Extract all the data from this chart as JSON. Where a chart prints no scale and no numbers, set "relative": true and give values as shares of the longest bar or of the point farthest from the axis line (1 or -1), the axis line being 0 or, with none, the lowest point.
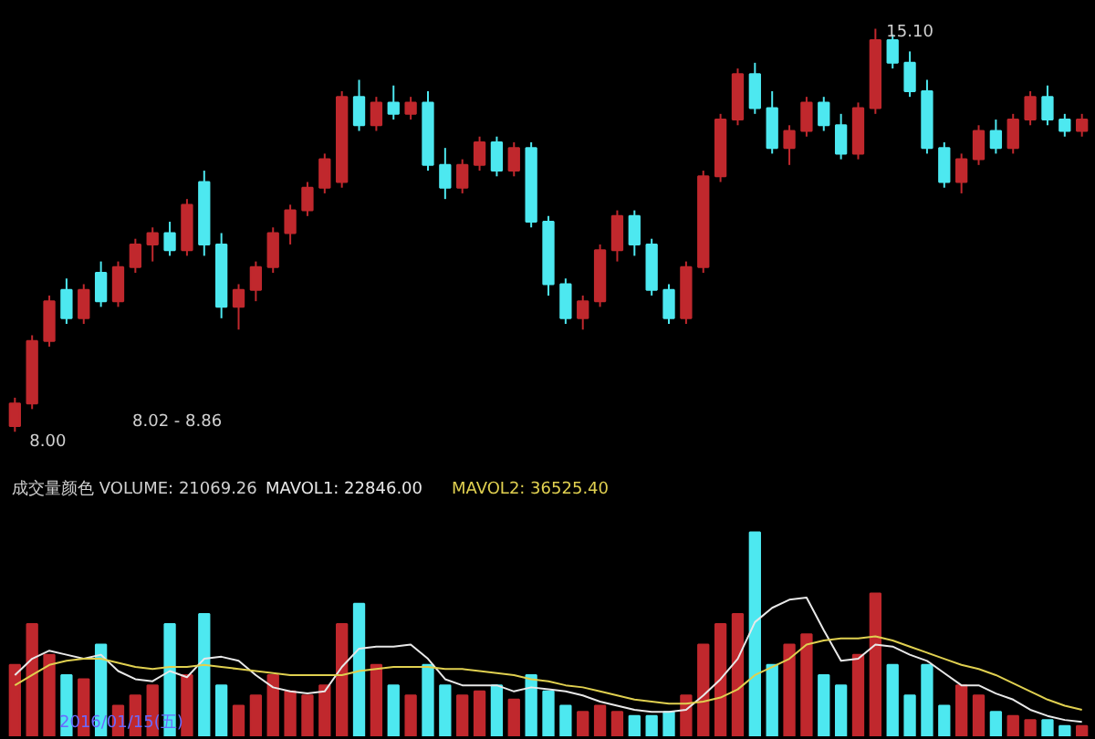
{
  "chart_data": [
    {
      "type": "candlestick",
      "tick_labels": false,
      "grid": false,
      "categories": [
        null,
        null,
        null,
        null,
        null,
        null,
        null,
        null,
        null,
        null,
        null,
        null,
        null,
        null,
        null,
        null,
        null,
        null,
        null,
        null,
        null,
        null,
        null,
        null,
        null,
        null,
        null,
        null,
        null,
        null,
        null,
        null,
        null,
        null,
        null,
        null,
        null,
        null,
        null,
        null,
        null,
        null,
        null,
        null,
        null,
        null,
        null,
        null,
        null,
        null,
        null,
        null,
        null,
        null,
        null,
        null,
        null,
        null,
        null,
        null,
        null,
        null,
        null
      ],
      "ohlc": [
        [
          8.1,
          8.6,
          8.0,
          8.5
        ],
        [
          8.5,
          9.7,
          8.4,
          9.6
        ],
        [
          9.6,
          10.4,
          9.5,
          10.3
        ],
        [
          10.5,
          10.7,
          9.9,
          10.0
        ],
        [
          10.0,
          10.6,
          9.9,
          10.5
        ],
        [
          10.8,
          11.0,
          10.2,
          10.3
        ],
        [
          10.3,
          11.0,
          10.2,
          10.9
        ],
        [
          10.9,
          11.4,
          10.8,
          11.3
        ],
        [
          11.3,
          11.6,
          11.0,
          11.5
        ],
        [
          11.5,
          11.7,
          11.1,
          11.2
        ],
        [
          11.2,
          12.1,
          11.1,
          12.0
        ],
        [
          12.4,
          12.6,
          11.1,
          11.3
        ],
        [
          11.3,
          11.5,
          10.0,
          10.2
        ],
        [
          10.2,
          10.6,
          9.8,
          10.5
        ],
        [
          10.5,
          11.0,
          10.3,
          10.9
        ],
        [
          10.9,
          11.6,
          10.8,
          11.5
        ],
        [
          11.5,
          12.0,
          11.3,
          11.9
        ],
        [
          11.9,
          12.4,
          11.8,
          12.3
        ],
        [
          12.3,
          12.9,
          12.2,
          12.8
        ],
        [
          12.4,
          14.0,
          12.3,
          13.9
        ],
        [
          13.9,
          14.2,
          13.3,
          13.4
        ],
        [
          13.4,
          13.9,
          13.3,
          13.8
        ],
        [
          13.8,
          14.1,
          13.5,
          13.6
        ],
        [
          13.6,
          13.9,
          13.5,
          13.8
        ],
        [
          13.8,
          14.0,
          12.6,
          12.7
        ],
        [
          12.7,
          13.0,
          12.1,
          12.3
        ],
        [
          12.3,
          12.8,
          12.2,
          12.7
        ],
        [
          12.7,
          13.2,
          12.6,
          13.1
        ],
        [
          13.1,
          13.2,
          12.5,
          12.6
        ],
        [
          12.6,
          13.1,
          12.5,
          13.0
        ],
        [
          13.0,
          13.1,
          11.6,
          11.7
        ],
        [
          11.7,
          11.8,
          10.4,
          10.6
        ],
        [
          10.6,
          10.7,
          9.9,
          10.0
        ],
        [
          10.0,
          10.4,
          9.8,
          10.3
        ],
        [
          10.3,
          11.3,
          10.2,
          11.2
        ],
        [
          11.2,
          11.9,
          11.0,
          11.8
        ],
        [
          11.8,
          11.9,
          11.1,
          11.3
        ],
        [
          11.3,
          11.4,
          10.4,
          10.5
        ],
        [
          10.5,
          10.6,
          9.9,
          10.0
        ],
        [
          10.0,
          11.0,
          9.9,
          10.9
        ],
        [
          10.9,
          12.6,
          10.8,
          12.5
        ],
        [
          12.5,
          13.6,
          12.4,
          13.5
        ],
        [
          13.5,
          14.4,
          13.4,
          14.3
        ],
        [
          14.3,
          14.5,
          13.6,
          13.7
        ],
        [
          13.7,
          14.0,
          12.9,
          13.0
        ],
        [
          13.0,
          13.4,
          12.7,
          13.3
        ],
        [
          13.3,
          13.9,
          13.2,
          13.8
        ],
        [
          13.8,
          13.9,
          13.3,
          13.4
        ],
        [
          13.4,
          13.6,
          12.8,
          12.9
        ],
        [
          12.9,
          13.8,
          12.8,
          13.7
        ],
        [
          13.7,
          15.1,
          13.6,
          14.9
        ],
        [
          14.9,
          15.0,
          14.4,
          14.5
        ],
        [
          14.5,
          14.7,
          13.9,
          14.0
        ],
        [
          14.0,
          14.2,
          12.9,
          13.0
        ],
        [
          13.0,
          13.1,
          12.3,
          12.4
        ],
        [
          12.4,
          12.9,
          12.2,
          12.8
        ],
        [
          12.8,
          13.4,
          12.7,
          13.3
        ],
        [
          13.3,
          13.5,
          12.9,
          13.0
        ],
        [
          13.0,
          13.6,
          12.9,
          13.5
        ],
        [
          13.5,
          14.0,
          13.4,
          13.9
        ],
        [
          13.9,
          14.1,
          13.4,
          13.5
        ],
        [
          13.5,
          13.6,
          13.2,
          13.3
        ],
        [
          13.3,
          13.6,
          13.2,
          13.5
        ]
      ],
      "colors": [
        "#c0282d",
        "#c0282d",
        "#c0282d",
        "#4de8f0",
        "#c0282d",
        "#4de8f0",
        "#c0282d",
        "#c0282d",
        "#c0282d",
        "#4de8f0",
        "#c0282d",
        "#4de8f0",
        "#4de8f0",
        "#c0282d",
        "#c0282d",
        "#c0282d",
        "#c0282d",
        "#c0282d",
        "#c0282d",
        "#c0282d",
        "#4de8f0",
        "#c0282d",
        "#4de8f0",
        "#c0282d",
        "#4de8f0",
        "#4de8f0",
        "#c0282d",
        "#c0282d",
        "#4de8f0",
        "#c0282d",
        "#4de8f0",
        "#4de8f0",
        "#4de8f0",
        "#c0282d",
        "#c0282d",
        "#c0282d",
        "#4de8f0",
        "#4de8f0",
        "#4de8f0",
        "#c0282d",
        "#c0282d",
        "#c0282d",
        "#c0282d",
        "#4de8f0",
        "#4de8f0",
        "#c0282d",
        "#c0282d",
        "#4de8f0",
        "#4de8f0",
        "#c0282d",
        "#c0282d",
        "#4de8f0",
        "#4de8f0",
        "#4de8f0",
        "#4de8f0",
        "#c0282d",
        "#c0282d",
        "#4de8f0",
        "#c0282d",
        "#c0282d",
        "#4de8f0",
        "#4de8f0",
        "#c0282d"
      ],
      "annotations": [
        "15.10",
        "8.00",
        "8.02 - 8.86"
      ]
    },
    {
      "type": "bar",
      "relative": true,
      "tick_labels": false,
      "grid": false,
      "title": "成交量颜色 VOLUME: 21069.26",
      "categories": [
        null,
        null,
        null,
        null,
        null,
        null,
        null,
        null,
        null,
        null,
        null,
        null,
        null,
        null,
        null,
        null,
        null,
        null,
        null,
        null,
        null,
        null,
        null,
        null,
        null,
        null,
        null,
        null,
        null,
        null,
        null,
        null,
        null,
        null,
        null,
        null,
        null,
        null,
        null,
        null,
        null,
        null,
        null,
        null,
        null,
        null,
        null,
        null,
        null,
        null,
        null,
        null,
        null,
        null,
        null,
        null,
        null,
        null,
        null,
        null,
        null,
        null,
        null
      ],
      "series": [
        {
          "type": "bar",
          "colors": [
            "#c0282d",
            "#c0282d",
            "#c0282d",
            "#4de8f0",
            "#c0282d",
            "#4de8f0",
            "#c0282d",
            "#c0282d",
            "#c0282d",
            "#4de8f0",
            "#c0282d",
            "#4de8f0",
            "#4de8f0",
            "#c0282d",
            "#c0282d",
            "#c0282d",
            "#c0282d",
            "#c0282d",
            "#c0282d",
            "#c0282d",
            "#4de8f0",
            "#c0282d",
            "#4de8f0",
            "#c0282d",
            "#4de8f0",
            "#4de8f0",
            "#c0282d",
            "#c0282d",
            "#4de8f0",
            "#c0282d",
            "#4de8f0",
            "#4de8f0",
            "#4de8f0",
            "#c0282d",
            "#c0282d",
            "#c0282d",
            "#4de8f0",
            "#4de8f0",
            "#4de8f0",
            "#c0282d",
            "#c0282d",
            "#c0282d",
            "#c0282d",
            "#4de8f0",
            "#4de8f0",
            "#c0282d",
            "#c0282d",
            "#4de8f0",
            "#4de8f0",
            "#c0282d",
            "#c0282d",
            "#4de8f0",
            "#4de8f0",
            "#4de8f0",
            "#4de8f0",
            "#c0282d",
            "#c0282d",
            "#4de8f0",
            "#c0282d",
            "#c0282d",
            "#4de8f0",
            "#4de8f0",
            "#c0282d"
          ],
          "values": [
            0.35,
            0.55,
            0.4,
            0.3,
            0.28,
            0.45,
            0.15,
            0.2,
            0.25,
            0.55,
            0.3,
            0.6,
            0.25,
            0.15,
            0.2,
            0.3,
            0.22,
            0.2,
            0.25,
            0.55,
            0.65,
            0.35,
            0.25,
            0.2,
            0.35,
            0.25,
            0.2,
            0.22,
            0.25,
            0.18,
            0.3,
            0.22,
            0.15,
            0.12,
            0.15,
            0.12,
            0.1,
            0.1,
            0.12,
            0.2,
            0.45,
            0.55,
            0.6,
            1.0,
            0.35,
            0.45,
            0.5,
            0.3,
            0.25,
            0.4,
            0.7,
            0.35,
            0.2,
            0.35,
            0.15,
            0.25,
            0.2,
            0.12,
            0.1,
            0.08,
            0.08,
            0.05,
            0.05
          ]
        },
        {
          "type": "line",
          "name": "MAVOL1: 22846.00",
          "color": "#e8e8e8",
          "values": [
            0.3,
            0.38,
            0.42,
            0.4,
            0.38,
            0.4,
            0.32,
            0.28,
            0.27,
            0.32,
            0.29,
            0.38,
            0.39,
            0.37,
            0.3,
            0.24,
            0.22,
            0.21,
            0.22,
            0.34,
            0.43,
            0.44,
            0.44,
            0.45,
            0.38,
            0.28,
            0.25,
            0.25,
            0.25,
            0.22,
            0.24,
            0.23,
            0.22,
            0.2,
            0.17,
            0.15,
            0.13,
            0.12,
            0.12,
            0.13,
            0.2,
            0.28,
            0.38,
            0.56,
            0.63,
            0.67,
            0.68,
            0.52,
            0.37,
            0.38,
            0.45,
            0.44,
            0.4,
            0.37,
            0.31,
            0.25,
            0.25,
            0.21,
            0.18,
            0.13,
            0.1,
            0.08,
            0.07
          ]
        },
        {
          "type": "line",
          "name": "MAVOL2: 36525.40",
          "color": "#e0d050",
          "values": [
            0.25,
            0.3,
            0.35,
            0.37,
            0.38,
            0.38,
            0.36,
            0.34,
            0.33,
            0.34,
            0.34,
            0.35,
            0.34,
            0.33,
            0.32,
            0.31,
            0.3,
            0.3,
            0.3,
            0.3,
            0.32,
            0.33,
            0.34,
            0.34,
            0.34,
            0.33,
            0.33,
            0.32,
            0.31,
            0.3,
            0.28,
            0.27,
            0.25,
            0.24,
            0.22,
            0.2,
            0.18,
            0.17,
            0.16,
            0.16,
            0.17,
            0.19,
            0.23,
            0.3,
            0.34,
            0.38,
            0.45,
            0.47,
            0.48,
            0.48,
            0.49,
            0.47,
            0.44,
            0.41,
            0.38,
            0.35,
            0.33,
            0.3,
            0.26,
            0.22,
            0.18,
            0.15,
            0.13
          ]
        }
      ],
      "annotations": [
        "2016/01/15(五)"
      ]
    }
  ]
}
